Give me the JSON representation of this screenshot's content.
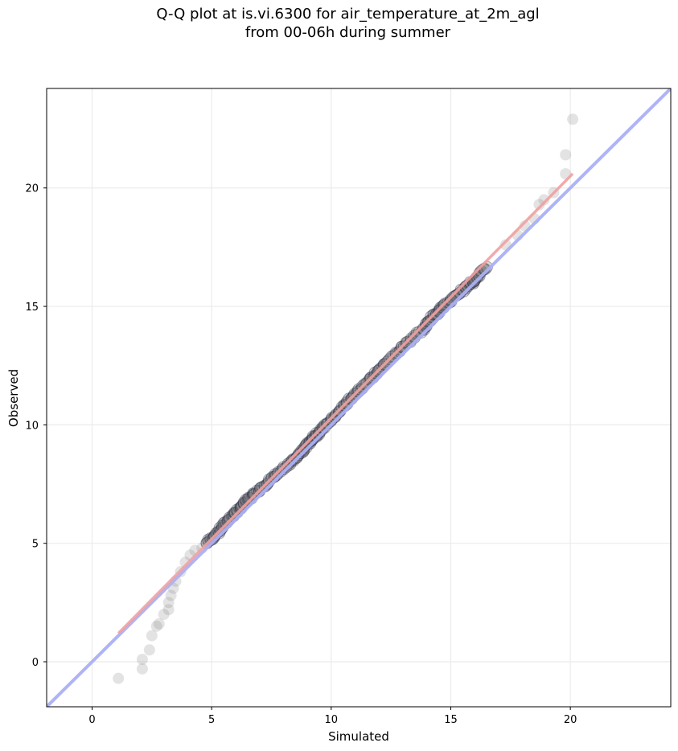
{
  "chart_data": {
    "type": "scatter",
    "title": "Q-Q plot at is.vi.6300 for air_temperature_at_2m_agl",
    "subtitle": "from 00-06h during summer",
    "xlabel": "Simulated",
    "ylabel": "Observed",
    "xlim": [
      -1.9,
      24.2
    ],
    "ylim": [
      -1.9,
      24.2
    ],
    "xticks": [
      0,
      5,
      10,
      15,
      20
    ],
    "yticks": [
      0,
      5,
      10,
      15,
      20
    ],
    "grid": true,
    "reference_line": {
      "slope": 1,
      "intercept": 0,
      "color": "#aab0f5"
    },
    "fit_line": {
      "x": [
        1.1,
        20.1
      ],
      "y": [
        1.2,
        20.6
      ],
      "color": "#f2a0a0"
    },
    "points_color": "#7f7f7f",
    "outliers": [
      {
        "x": 1.1,
        "y": -0.7
      },
      {
        "x": 2.1,
        "y": -0.3
      },
      {
        "x": 2.1,
        "y": 0.1
      },
      {
        "x": 2.4,
        "y": 0.5
      },
      {
        "x": 2.5,
        "y": 1.1
      },
      {
        "x": 2.7,
        "y": 1.5
      },
      {
        "x": 2.8,
        "y": 1.6
      },
      {
        "x": 3.0,
        "y": 2.0
      },
      {
        "x": 3.2,
        "y": 2.2
      },
      {
        "x": 3.2,
        "y": 2.5
      },
      {
        "x": 3.3,
        "y": 2.8
      },
      {
        "x": 3.4,
        "y": 3.1
      },
      {
        "x": 3.5,
        "y": 3.4
      },
      {
        "x": 3.7,
        "y": 3.8
      },
      {
        "x": 3.9,
        "y": 4.2
      },
      {
        "x": 4.1,
        "y": 4.5
      },
      {
        "x": 4.3,
        "y": 4.7
      },
      {
        "x": 4.6,
        "y": 4.8
      },
      {
        "x": 17.3,
        "y": 17.6
      },
      {
        "x": 17.8,
        "y": 18.0
      },
      {
        "x": 18.1,
        "y": 18.4
      },
      {
        "x": 18.5,
        "y": 18.7
      },
      {
        "x": 18.7,
        "y": 19.3
      },
      {
        "x": 18.9,
        "y": 19.5
      },
      {
        "x": 19.3,
        "y": 19.8
      },
      {
        "x": 19.8,
        "y": 20.6
      },
      {
        "x": 19.8,
        "y": 21.4
      },
      {
        "x": 20.1,
        "y": 22.9
      }
    ],
    "dense_trace": {
      "x": [
        4.8,
        5.3,
        5.8,
        6.3,
        6.8,
        7.5,
        8.2,
        8.8,
        9.2,
        9.6,
        10.2,
        10.8,
        11.5,
        12.2,
        13.0,
        13.8,
        14.3,
        14.8,
        15.5,
        16.0,
        16.5
      ],
      "y": [
        5.0,
        5.5,
        6.1,
        6.6,
        7.1,
        7.7,
        8.3,
        8.9,
        9.4,
        9.8,
        10.4,
        11.1,
        11.8,
        12.5,
        13.3,
        14.0,
        14.6,
        15.1,
        15.7,
        16.1,
        16.7
      ]
    }
  }
}
